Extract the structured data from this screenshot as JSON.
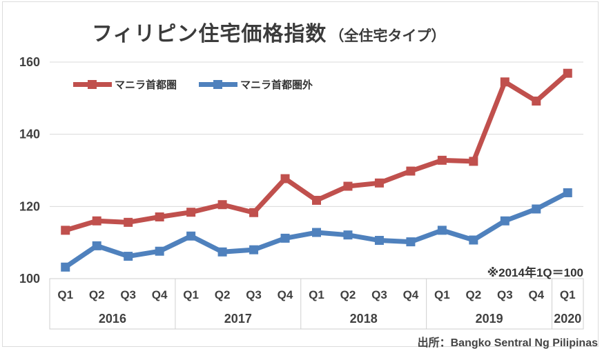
{
  "title": {
    "main": "フィリピン住宅価格指数",
    "sub": "（全住宅タイプ）"
  },
  "annotation": "※2014年1Q＝100",
  "source": "出所：Bangko Sentral Ng Pilipinas",
  "legend": [
    {
      "label": "マニラ首都圏",
      "color": "#C0504D"
    },
    {
      "label": "マニラ首都圏外",
      "color": "#4F81BD"
    }
  ],
  "colors": {
    "red_series": "#C0504D",
    "blue_series": "#4F81BD",
    "gridline": "#d9d9d9",
    "table_border": "#cfcfcf",
    "axis_text": "#404040"
  },
  "chart_data": {
    "type": "line",
    "categories": [
      "Q1",
      "Q2",
      "Q3",
      "Q4",
      "Q1",
      "Q2",
      "Q3",
      "Q4",
      "Q1",
      "Q2",
      "Q3",
      "Q4",
      "Q1",
      "Q2",
      "Q3",
      "Q4",
      "Q1"
    ],
    "year_groups": [
      {
        "label": "2016",
        "count": 4
      },
      {
        "label": "2017",
        "count": 4
      },
      {
        "label": "2018",
        "count": 4
      },
      {
        "label": "2019",
        "count": 4
      },
      {
        "label": "2020",
        "count": 1
      }
    ],
    "series": [
      {
        "name": "マニラ首都圏",
        "color": "#C0504D",
        "values": [
          113.4,
          116.0,
          115.6,
          117.1,
          118.4,
          120.5,
          118.3,
          127.7,
          121.7,
          125.6,
          126.5,
          129.8,
          132.8,
          132.5,
          154.5,
          149.2,
          156.9
        ]
      },
      {
        "name": "マニラ首都圏外",
        "color": "#4F81BD",
        "values": [
          103.2,
          109.1,
          106.2,
          107.6,
          111.8,
          107.4,
          108.0,
          111.2,
          112.8,
          112.1,
          110.6,
          110.2,
          113.4,
          110.7,
          116.0,
          119.3,
          123.8
        ]
      }
    ],
    "ylim": [
      100,
      160
    ],
    "yticks": [
      100,
      120,
      140,
      160
    ],
    "grid": true,
    "legend_position": "top-left",
    "note": "※2014年1Q＝100",
    "title": "フィリピン住宅価格指数（全住宅タイプ）",
    "xlabel": "",
    "ylabel": ""
  }
}
